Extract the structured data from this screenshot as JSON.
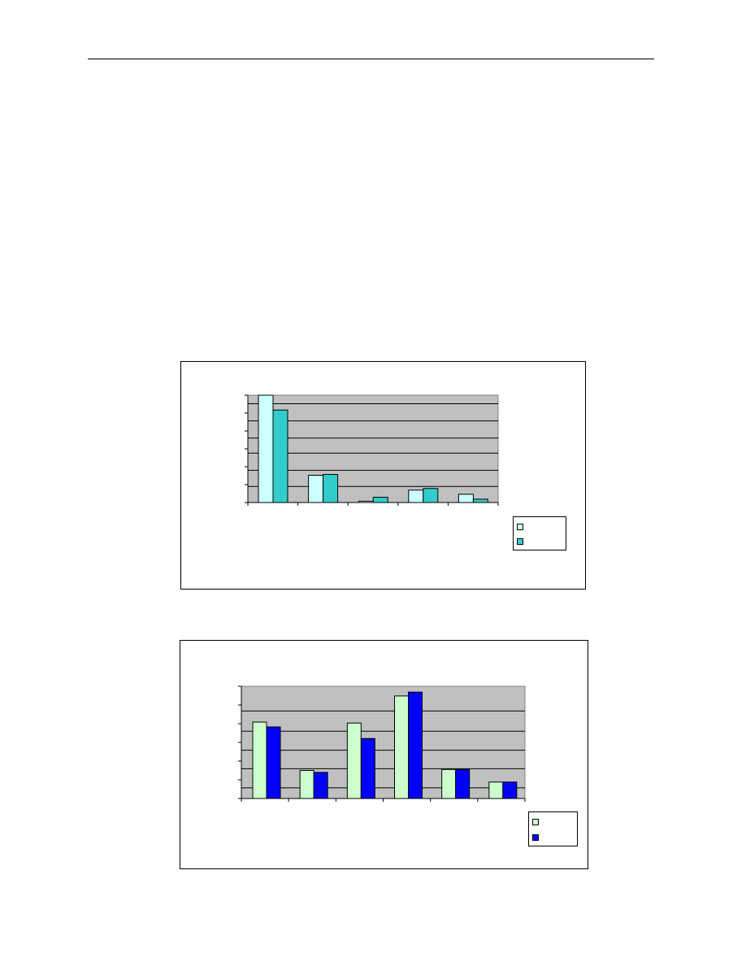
{
  "chart_data": [
    {
      "type": "bar",
      "title": "",
      "xlabel": "",
      "ylabel": "",
      "categories": [
        "",
        "",
        "",
        "",
        ""
      ],
      "ylim": [
        0,
        6.5
      ],
      "grid": true,
      "legend": "bottom-right",
      "series": [
        {
          "name": "",
          "color": "#ccffff",
          "values": [
            6.5,
            1.65,
            0.08,
            0.75,
            0.5
          ]
        },
        {
          "name": "",
          "color": "#33cccc",
          "values": [
            5.6,
            1.7,
            0.32,
            0.85,
            0.2
          ]
        }
      ],
      "plot_background": "#c0c0c0"
    },
    {
      "type": "bar",
      "title": "",
      "xlabel": "",
      "ylabel": "",
      "categories": [
        "",
        "",
        "",
        "",
        "",
        ""
      ],
      "ylim": [
        0,
        5.8
      ],
      "grid": true,
      "legend": "bottom-right",
      "series": [
        {
          "name": "",
          "color": "#ccffcc",
          "values": [
            3.95,
            1.45,
            3.9,
            5.3,
            1.5,
            0.85
          ]
        },
        {
          "name": "",
          "color": "#0000ff",
          "values": [
            3.7,
            1.35,
            3.1,
            5.5,
            1.5,
            0.85
          ]
        }
      ],
      "plot_background": "#c0c0c0"
    }
  ]
}
